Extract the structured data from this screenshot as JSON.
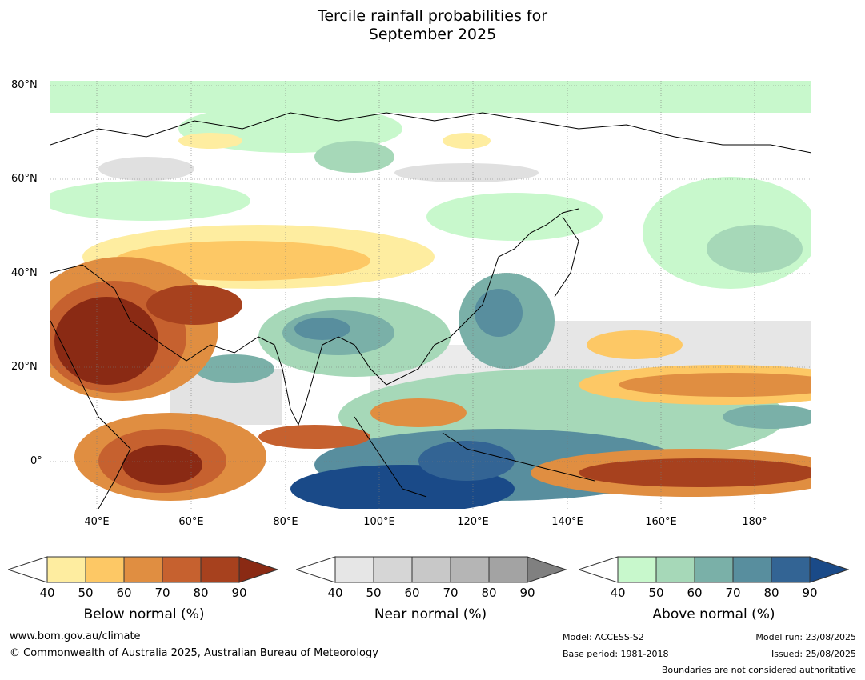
{
  "title_line1": "Tercile rainfall probabilities for",
  "title_line2": "September 2025",
  "map": {
    "lat_labels": [
      "80°N",
      "60°N",
      "40°N",
      "20°N",
      "0°"
    ],
    "lon_labels": [
      "40°E",
      "60°E",
      "80°E",
      "100°E",
      "120°E",
      "140°E",
      "160°E",
      "180°"
    ],
    "lat_values": [
      80,
      60,
      40,
      20,
      0
    ],
    "lon_values": [
      40,
      60,
      80,
      100,
      120,
      140,
      160,
      180
    ],
    "extent": {
      "lon_min": 30,
      "lon_max": 192,
      "lat_min": -10,
      "lat_max": 81
    }
  },
  "colorbars": [
    {
      "title": "Below normal (%)",
      "ticks": [
        "40",
        "50",
        "60",
        "70",
        "80",
        "90"
      ],
      "colors": [
        "#ffffff",
        "#feeda0",
        "#fdc865",
        "#e08e41",
        "#c6612f",
        "#a7411e",
        "#8a2a14"
      ]
    },
    {
      "title": "Near normal (%)",
      "ticks": [
        "40",
        "50",
        "60",
        "70",
        "80",
        "90"
      ],
      "colors": [
        "#ffffff",
        "#e6e6e6",
        "#d6d6d6",
        "#c8c8c8",
        "#b5b5b5",
        "#a3a3a3",
        "#808080"
      ]
    },
    {
      "title": "Above normal (%)",
      "ticks": [
        "40",
        "50",
        "60",
        "70",
        "80",
        "90"
      ],
      "colors": [
        "#ffffff",
        "#c8f8cc",
        "#a6d8b8",
        "#7ab0a8",
        "#588e9e",
        "#336494",
        "#1a4a88"
      ]
    }
  ],
  "footer": {
    "website": "www.bom.gov.au/climate",
    "copyright": "© Commonwealth of Australia 2025, Australian Bureau of Meteorology",
    "model": "Model: ACCESS-S2",
    "base_period": "Base period: 1981-2018",
    "model_run": "Model run: 23/08/2025",
    "issued": "Issued: 25/08/2025",
    "disclaimer": "Boundaries are not considered authoritative"
  }
}
